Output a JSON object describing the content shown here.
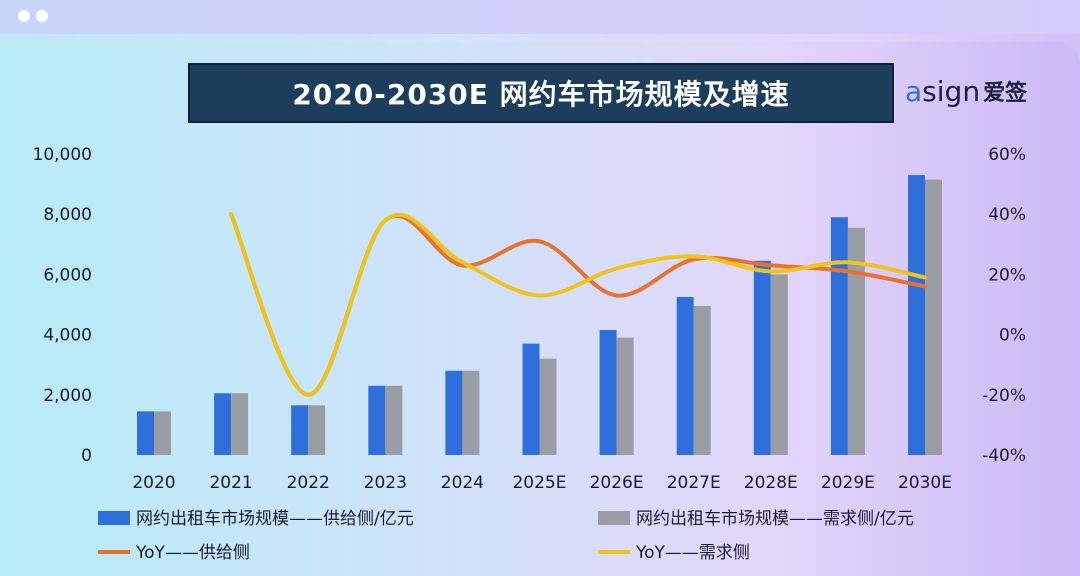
{
  "window": {
    "dots": 2
  },
  "logo": {
    "brand_a": "a",
    "brand_rest": "sign",
    "brand_cn": "爱签"
  },
  "chart_data": {
    "type": "bar",
    "title": "2020-2030E 网约车市场规模及增速",
    "categories": [
      "2020",
      "2021",
      "2022",
      "2023",
      "2024",
      "2025E",
      "2026E",
      "2027E",
      "2028E",
      "2029E",
      "2030E"
    ],
    "ylim": [
      0,
      10000
    ],
    "y_ticks": [
      "0",
      "2,000",
      "4,000",
      "6,000",
      "8,000",
      "10,000"
    ],
    "y2lim": [
      -40,
      60
    ],
    "y2_ticks": [
      "-40%",
      "-20%",
      "0%",
      "20%",
      "40%",
      "60%"
    ],
    "series": [
      {
        "name": "网约出租车市场规模——供给侧/亿元",
        "kind": "bar",
        "axis": "left",
        "color": "#2f6fdb",
        "values": [
          1450,
          2050,
          1650,
          2300,
          2800,
          3700,
          4150,
          5250,
          6450,
          7900,
          9300
        ]
      },
      {
        "name": "网约出租车市场规模——需求侧/亿元",
        "kind": "bar",
        "axis": "left",
        "color": "#9a9da3",
        "values": [
          1450,
          2050,
          1650,
          2300,
          2800,
          3200,
          3900,
          4950,
          6000,
          7550,
          9150
        ]
      },
      {
        "name": "YoY——供给侧",
        "kind": "line",
        "axis": "right",
        "color": "#e8732f",
        "values": [
          null,
          40,
          -20,
          38,
          23,
          31,
          13,
          25,
          23,
          21,
          16
        ]
      },
      {
        "name": "YoY——需求侧",
        "kind": "line",
        "axis": "right",
        "color": "#f0c419",
        "values": [
          null,
          40,
          -20,
          38,
          24,
          13,
          22,
          26,
          21,
          24,
          19
        ]
      }
    ],
    "legend": "bottom",
    "grid": false
  }
}
